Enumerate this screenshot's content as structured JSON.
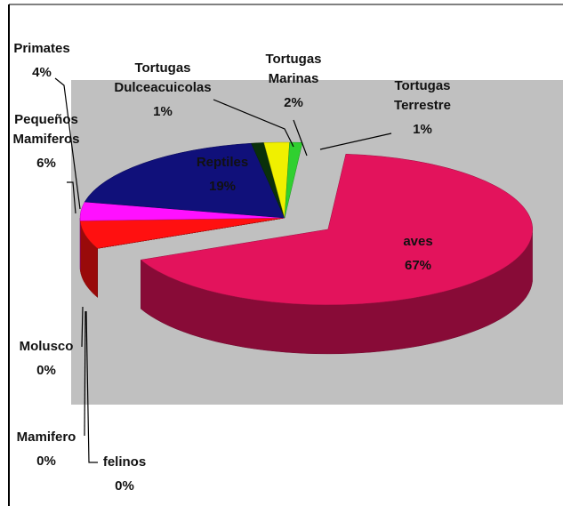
{
  "chart_data": {
    "type": "pie3d",
    "categories": [
      "aves",
      "felinos",
      "Mamifero",
      "Molusco",
      "Pequeños Mamiferos",
      "Primates",
      "Reptiles",
      "Tortugas Dulceacuicolas",
      "Tortugas Marinas",
      "Tortugas Terrestre"
    ],
    "values": [
      67,
      0,
      0,
      0,
      6,
      4,
      19,
      1,
      2,
      1
    ],
    "value_labels": [
      "67%",
      "0%",
      "0%",
      "0%",
      "6%",
      "4%",
      "19%",
      "1%",
      "2%",
      "1%"
    ],
    "colors": [
      "#e3135c",
      "#7a1020",
      "#8b0a0a",
      "#990000",
      "#ff1010",
      "#ff10ff",
      "#10107a",
      "#0a300a",
      "#f0f000",
      "#30d030"
    ]
  }
}
